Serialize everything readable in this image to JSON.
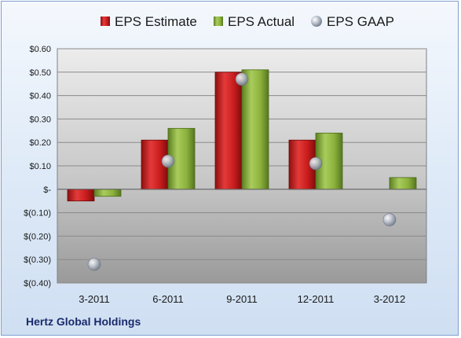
{
  "company": "Hertz Global Holdings",
  "colors": {
    "estimate": "#d42020",
    "actual": "#8cb23c",
    "gaap": "#a8b0bc"
  },
  "chart_data": {
    "type": "bar",
    "categories": [
      "3-2011",
      "6-2011",
      "9-2011",
      "12-2011",
      "3-2012"
    ],
    "series": [
      {
        "name": "EPS Estimate",
        "kind": "bar",
        "values": [
          -0.05,
          0.21,
          0.5,
          0.21,
          null
        ]
      },
      {
        "name": "EPS Actual",
        "kind": "bar",
        "values": [
          -0.03,
          0.26,
          0.51,
          0.24,
          0.05
        ]
      },
      {
        "name": "EPS GAAP",
        "kind": "marker",
        "values": [
          -0.32,
          0.12,
          0.47,
          0.11,
          -0.13
        ]
      }
    ],
    "ylim": [
      -0.4,
      0.6
    ],
    "yticks": [
      0.6,
      0.5,
      0.4,
      0.3,
      0.2,
      0.1,
      0,
      -0.1,
      -0.2,
      -0.3,
      -0.4
    ],
    "ytick_labels": [
      "$0.60",
      "$0.50",
      "$0.40",
      "$0.30",
      "$0.20",
      "$0.10",
      "$-",
      "$(0.10)",
      "$(0.20)",
      "$(0.30)",
      "$(0.40)"
    ],
    "legend_position": "top",
    "grid": true
  }
}
